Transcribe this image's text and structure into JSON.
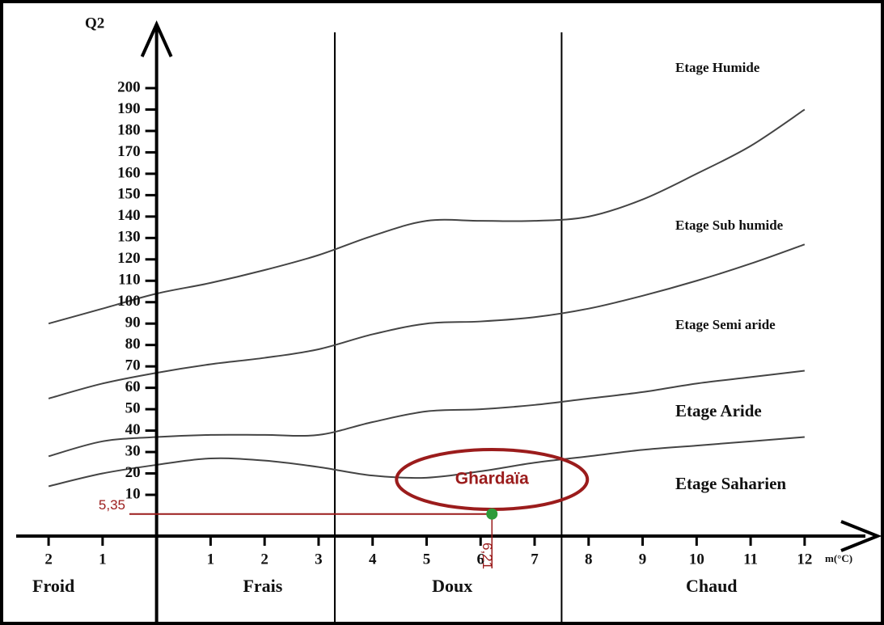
{
  "chart_data": {
    "type": "line",
    "y_label": "Q2",
    "x_label": "m(°C)",
    "x": [
      -2,
      -1,
      0,
      1,
      2,
      3,
      4,
      5,
      6,
      7,
      8,
      9,
      10,
      11,
      12
    ],
    "series": [
      {
        "color": "#444444",
        "values": [
          90,
          97,
          104,
          109,
          115,
          122,
          131,
          138,
          138,
          138,
          140,
          148,
          160,
          173,
          190
        ]
      },
      {
        "color": "#444444",
        "values": [
          55,
          62,
          67,
          71,
          74,
          78,
          85,
          90,
          91,
          93,
          97,
          103,
          110,
          118,
          127
        ]
      },
      {
        "color": "#444444",
        "values": [
          28,
          35,
          37,
          38,
          38,
          38,
          44,
          49,
          50,
          52,
          55,
          58,
          62,
          65,
          68
        ]
      },
      {
        "color": "#444444",
        "values": [
          14,
          20,
          24,
          27,
          26,
          23,
          19,
          18,
          21,
          25,
          28,
          31,
          33,
          35,
          37
        ]
      }
    ],
    "xlim": [
      -2.75,
      13.35
    ],
    "ylim": [
      0,
      230
    ],
    "xticks": [
      {
        "value": -2,
        "label": "2"
      },
      {
        "value": -1,
        "label": "1"
      },
      1,
      2,
      3,
      4,
      5,
      6,
      7,
      8,
      9,
      10,
      11,
      12
    ],
    "yticks": [
      10,
      20,
      30,
      40,
      50,
      60,
      70,
      80,
      90,
      100,
      110,
      120,
      130,
      140,
      150,
      160,
      170,
      180,
      190,
      200
    ],
    "zone_bounds": [
      3.3,
      7.5
    ],
    "zones": [
      {
        "label": "Froid",
        "x": -2.3
      },
      {
        "label": "Frais",
        "x": 1.6
      },
      {
        "label": "Doux",
        "x": 5.1
      },
      {
        "label": "Chaud",
        "x": 9.8
      }
    ],
    "etages": [
      "Etage Humide",
      "Etage Sub humide",
      "Etage Semi aride",
      "Etage Aride",
      "Etage Saharien"
    ],
    "point": {
      "label": "Ghardaïa",
      "x": 6.21,
      "y": 5.35,
      "x_label": "6,21",
      "y_label": "5,35",
      "color": "#2e9b3a",
      "line_color": "#9b1c1c"
    }
  }
}
